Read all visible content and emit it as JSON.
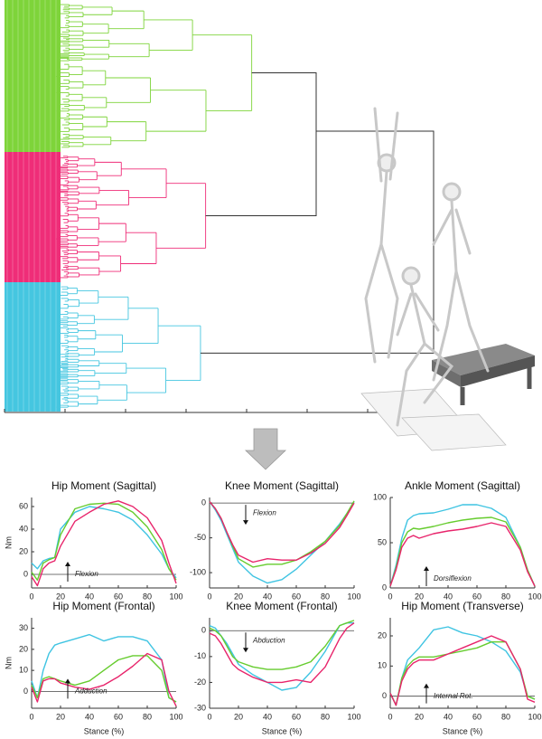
{
  "chart_data": [
    {
      "type": "line",
      "title": "Hip Moment (Sagittal)",
      "y_label": "Nm",
      "annotation": "Flexion",
      "arrow": "up",
      "x": [
        0,
        4,
        8,
        12,
        16,
        20,
        30,
        40,
        50,
        60,
        70,
        80,
        90,
        95,
        100
      ],
      "xlim": [
        0,
        100
      ],
      "xticks": [
        0,
        20,
        40,
        60,
        80,
        100
      ],
      "ylim": [
        -12,
        68
      ],
      "yticks": [
        0,
        20,
        40,
        60
      ],
      "series": [
        {
          "color": "#3fc4e2",
          "values": [
            10,
            5,
            12,
            14,
            15,
            40,
            55,
            60,
            58,
            55,
            48,
            35,
            18,
            5,
            -3
          ]
        },
        {
          "color": "#66cc2e",
          "values": [
            2,
            -5,
            10,
            13,
            15,
            35,
            58,
            62,
            63,
            62,
            55,
            42,
            22,
            5,
            -5
          ]
        },
        {
          "color": "#e8246b",
          "values": [
            -2,
            -10,
            5,
            10,
            12,
            25,
            47,
            55,
            62,
            65,
            60,
            50,
            30,
            10,
            -8
          ]
        }
      ]
    },
    {
      "type": "line",
      "title": "Knee Moment (Sagittal)",
      "annotation": "Flexion",
      "arrow": "down",
      "x": [
        0,
        4,
        8,
        12,
        16,
        20,
        30,
        40,
        50,
        60,
        70,
        80,
        90,
        95,
        100
      ],
      "xlim": [
        0,
        100
      ],
      "xticks": [
        0,
        20,
        40,
        60,
        80,
        100
      ],
      "ylim": [
        -122,
        8
      ],
      "yticks": [
        -100,
        -50,
        0
      ],
      "series": [
        {
          "color": "#3fc4e2",
          "values": [
            2,
            -10,
            -25,
            -45,
            -65,
            -85,
            -105,
            -115,
            -110,
            -95,
            -75,
            -55,
            -30,
            -15,
            2
          ]
        },
        {
          "color": "#66cc2e",
          "values": [
            2,
            -8,
            -22,
            -42,
            -62,
            -80,
            -92,
            -88,
            -88,
            -82,
            -70,
            -55,
            -32,
            -15,
            3
          ]
        },
        {
          "color": "#e8246b",
          "values": [
            2,
            -8,
            -22,
            -42,
            -60,
            -75,
            -85,
            -80,
            -82,
            -82,
            -72,
            -58,
            -35,
            -18,
            0
          ]
        }
      ]
    },
    {
      "type": "line",
      "title": "Ankle Moment (Sagittal)",
      "annotation": "Dorsiflexion",
      "arrow": "up",
      "x": [
        0,
        4,
        8,
        12,
        16,
        20,
        30,
        40,
        50,
        60,
        70,
        80,
        90,
        95,
        100
      ],
      "xlim": [
        0,
        100
      ],
      "xticks": [
        0,
        20,
        40,
        60,
        80,
        100
      ],
      "ylim": [
        0,
        100
      ],
      "yticks": [
        0,
        50,
        100
      ],
      "series": [
        {
          "color": "#3fc4e2",
          "values": [
            2,
            25,
            55,
            75,
            80,
            82,
            83,
            87,
            92,
            92,
            88,
            78,
            45,
            20,
            2
          ]
        },
        {
          "color": "#66cc2e",
          "values": [
            2,
            22,
            50,
            62,
            66,
            65,
            68,
            72,
            75,
            77,
            78,
            73,
            45,
            20,
            2
          ]
        },
        {
          "color": "#e8246b",
          "values": [
            2,
            20,
            45,
            55,
            58,
            55,
            60,
            63,
            65,
            68,
            72,
            68,
            42,
            18,
            2
          ]
        }
      ]
    },
    {
      "type": "line",
      "title": "Hip Moment (Frontal)",
      "y_label": "Nm",
      "x_label": "Stance (%)",
      "annotation": "Adduction",
      "arrow": "up",
      "x": [
        0,
        4,
        8,
        12,
        16,
        20,
        30,
        40,
        50,
        60,
        70,
        80,
        90,
        95,
        100
      ],
      "xlim": [
        0,
        100
      ],
      "xticks": [
        0,
        20,
        40,
        60,
        80,
        100
      ],
      "ylim": [
        -8,
        35
      ],
      "yticks": [
        0,
        10,
        20,
        30
      ],
      "series": [
        {
          "color": "#3fc4e2",
          "values": [
            5,
            -3,
            10,
            18,
            22,
            23,
            25,
            27,
            24,
            26,
            26,
            24,
            15,
            -3,
            -5
          ]
        },
        {
          "color": "#66cc2e",
          "values": [
            3,
            -3,
            6,
            7,
            6,
            5,
            3,
            5,
            10,
            15,
            17,
            17,
            10,
            -3,
            -5
          ]
        },
        {
          "color": "#e8246b",
          "values": [
            2,
            -5,
            5,
            6,
            6,
            4,
            2,
            1,
            3,
            7,
            12,
            18,
            15,
            0,
            -7
          ]
        }
      ]
    },
    {
      "type": "line",
      "title": "Knee Moment (Frontal)",
      "x_label": "Stance (%)",
      "annotation": "Abduction",
      "arrow": "down",
      "x": [
        0,
        4,
        8,
        12,
        16,
        20,
        30,
        40,
        50,
        60,
        70,
        80,
        90,
        95,
        100
      ],
      "xlim": [
        0,
        100
      ],
      "xticks": [
        0,
        20,
        40,
        60,
        80,
        100
      ],
      "ylim": [
        -30,
        5
      ],
      "yticks": [
        -30,
        -20,
        -10,
        0
      ],
      "series": [
        {
          "color": "#3fc4e2",
          "values": [
            2,
            1,
            -2,
            -5,
            -9,
            -13,
            -17,
            -20,
            -23,
            -22,
            -16,
            -8,
            2,
            3,
            3
          ]
        },
        {
          "color": "#66cc2e",
          "values": [
            1,
            0,
            -2,
            -6,
            -10,
            -12,
            -14,
            -15,
            -15,
            -14,
            -12,
            -6,
            2,
            3,
            4
          ]
        },
        {
          "color": "#e8246b",
          "values": [
            -1,
            -2,
            -5,
            -9,
            -13,
            -15,
            -18,
            -20,
            -20,
            -19,
            -20,
            -14,
            -3,
            1,
            3
          ]
        }
      ]
    },
    {
      "type": "line",
      "title": "Hip Moment (Transverse)",
      "x_label": "Stance (%)",
      "annotation": "Internal Rot.",
      "arrow": "up",
      "x": [
        0,
        4,
        8,
        12,
        16,
        20,
        30,
        40,
        50,
        60,
        70,
        80,
        90,
        95,
        100
      ],
      "xlim": [
        0,
        100
      ],
      "xticks": [
        0,
        20,
        40,
        60,
        80,
        100
      ],
      "ylim": [
        -4,
        26
      ],
      "yticks": [
        0,
        10,
        20
      ],
      "series": [
        {
          "color": "#3fc4e2",
          "values": [
            1,
            -3,
            6,
            12,
            14,
            16,
            22,
            23,
            21,
            20,
            18,
            15,
            8,
            0,
            -1
          ]
        },
        {
          "color": "#66cc2e",
          "values": [
            1,
            -3,
            6,
            10,
            12,
            13,
            13,
            14,
            15,
            16,
            18,
            18,
            9,
            0,
            -1
          ]
        },
        {
          "color": "#e8246b",
          "values": [
            1,
            -3,
            5,
            9,
            11,
            12,
            12,
            14,
            16,
            18,
            20,
            18,
            9,
            -1,
            -2
          ]
        }
      ]
    }
  ]
}
